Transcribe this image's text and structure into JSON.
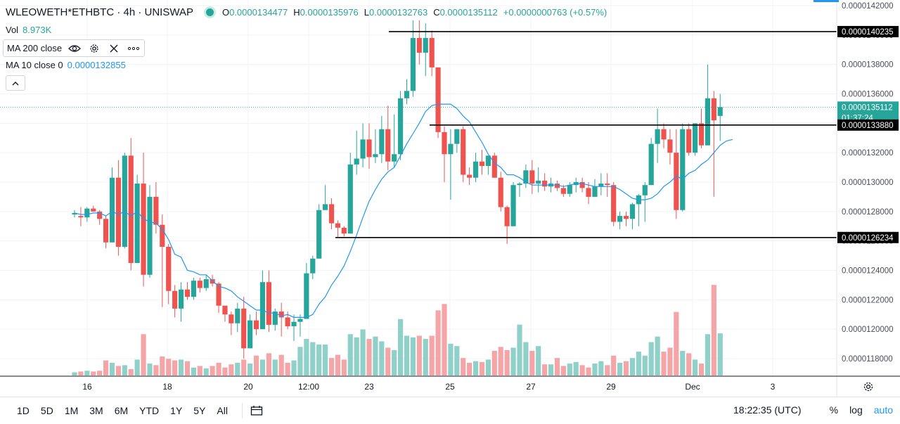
{
  "header": {
    "symbol": "WLEOWETH*ETHBTC · 4h · UNISWAP",
    "o_label": "O",
    "o": "0.0000134477",
    "h_label": "H",
    "h": "0.0000135976",
    "l_label": "L",
    "l": "0.0000132763",
    "c_label": "C",
    "c": "0.0000135112",
    "change": "+0.0000000763 (+0.57%)",
    "vol_label": "Vol",
    "vol": "8.973K",
    "ma200_label": "MA 200 close",
    "ma10_label": "MA 10 close 0",
    "ma10_value": "0.0000132855"
  },
  "toolbar": {
    "timeframes": [
      "1D",
      "5D",
      "1M",
      "3M",
      "6M",
      "YTD",
      "1Y",
      "5Y",
      "All"
    ],
    "clock": "18:22:35 (UTC)",
    "percent": "%",
    "log": "log",
    "auto": "auto"
  },
  "colors": {
    "up": "#26a69a",
    "down": "#ef5350",
    "up_vol": "#8fd1c9",
    "down_vol": "#f4a5a8",
    "ma": "#2196f3",
    "hline": "#000000"
  },
  "icons": [
    "eye-icon",
    "gear-icon",
    "close-icon",
    "more-icon",
    "chevron-up-icon",
    "calendar-icon",
    "settings-icon"
  ],
  "chart_data": {
    "type": "candlestick",
    "title": "WLEOWETH*ETHBTC · 4h · UNISWAP",
    "y_ticks": [
      "0.0000142000",
      "0.0000140000",
      "0.0000138000",
      "0.0000136000",
      "0.0000134000",
      "0.0000132000",
      "0.0000130000",
      "0.0000128000",
      "0.0000126000",
      "0.0000124000",
      "0.0000122000",
      "0.0000120000",
      "0.0000118000"
    ],
    "x_ticks": [
      "16",
      "18",
      "20",
      "12:00",
      "23",
      "25",
      "27",
      "29",
      "Dec",
      "3"
    ],
    "y_range": [
      1.16e-05,
      1.43e-05
    ],
    "price_labels": {
      "last": "0.0000135112",
      "countdown": "01:37:24",
      "line_a": "0.0000140235",
      "line_b": "0.0000133880",
      "line_c": "0.0000126234"
    },
    "horizontal_lines": [
      {
        "value": 1.40235e-05,
        "from_day": "23"
      },
      {
        "value": 1.3388e-05,
        "from_day": "25"
      },
      {
        "value": 1.26234e-05,
        "from_day": "22"
      }
    ],
    "ohlc": [
      [
        1.278e-05,
        1.281e-05,
        1.276e-05,
        1.279e-05,
        0.4
      ],
      [
        1.277e-05,
        1.283e-05,
        1.27e-05,
        1.276e-05,
        0.5
      ],
      [
        1.276e-05,
        1.283e-05,
        1.273e-05,
        1.282e-05,
        0.6
      ],
      [
        1.282e-05,
        1.284e-05,
        1.28e-05,
        1.28e-05,
        0.5
      ],
      [
        1.28e-05,
        1.281e-05,
        1.271e-05,
        1.275e-05,
        0.6
      ],
      [
        1.275e-05,
        1.277e-05,
        1.255e-05,
        1.259e-05,
        1.9
      ],
      [
        1.259e-05,
        1.31e-05,
        1.259e-05,
        1.303e-05,
        1.6
      ],
      [
        1.303e-05,
        1.315e-05,
        1.25e-05,
        1.256e-05,
        1.2
      ],
      [
        1.256e-05,
        1.32e-05,
        1.255e-05,
        1.318e-05,
        1.3
      ],
      [
        1.318e-05,
        1.33e-05,
        1.24e-05,
        1.245e-05,
        0.8
      ],
      [
        1.245e-05,
        1.305e-05,
        1.245e-05,
        1.299e-05,
        2.0
      ],
      [
        1.299e-05,
        1.32e-05,
        1.229e-05,
        1.237e-05,
        5.2
      ],
      [
        1.237e-05,
        1.298e-05,
        1.235e-05,
        1.29e-05,
        1.5
      ],
      [
        1.29e-05,
        1.3e-05,
        1.265e-05,
        1.271e-05,
        1.3
      ],
      [
        1.271e-05,
        1.278e-05,
        1.215e-05,
        1.256e-05,
        2.4
      ],
      [
        1.256e-05,
        1.258e-05,
        1.217e-05,
        1.226e-05,
        2.1
      ],
      [
        1.226e-05,
        1.23e-05,
        1.208e-05,
        1.214e-05,
        1.9
      ],
      [
        1.214e-05,
        1.232e-05,
        1.205e-05,
        1.227e-05,
        2.0
      ],
      [
        1.227e-05,
        1.232e-05,
        1.22e-05,
        1.222e-05,
        1.8
      ],
      [
        1.222e-05,
        1.235e-05,
        1.22e-05,
        1.233e-05,
        1.0
      ],
      [
        1.233e-05,
        1.235e-05,
        1.225e-05,
        1.228e-05,
        1.2
      ],
      [
        1.228e-05,
        1.237e-05,
        1.226e-05,
        1.234e-05,
        0.9
      ],
      [
        1.234e-05,
        1.237e-05,
        1.229e-05,
        1.231e-05,
        1.2
      ],
      [
        1.231e-05,
        1.232e-05,
        1.211e-05,
        1.216e-05,
        1.6
      ],
      [
        1.216e-05,
        1.216e-05,
        1.205e-05,
        1.21e-05,
        1.0
      ],
      [
        1.21e-05,
        1.212e-05,
        1.196e-05,
        1.204e-05,
        1.4
      ],
      [
        1.204e-05,
        1.218e-05,
        1.198e-05,
        1.214e-05,
        1.6
      ],
      [
        1.214e-05,
        1.222e-05,
        1.18e-05,
        1.187e-05,
        2.0
      ],
      [
        1.187e-05,
        1.21e-05,
        1.187e-05,
        1.206e-05,
        1.5
      ],
      [
        1.206e-05,
        1.212e-05,
        1.196e-05,
        1.2e-05,
        2.5
      ],
      [
        1.2e-05,
        1.24e-05,
        1.2e-05,
        1.232e-05,
        2.0
      ],
      [
        1.232e-05,
        1.24e-05,
        1.198e-05,
        1.203e-05,
        2.8
      ],
      [
        1.203e-05,
        1.214e-05,
        1.199e-05,
        1.212e-05,
        2.0
      ],
      [
        1.212e-05,
        1.218e-05,
        1.195e-05,
        1.208e-05,
        2.6
      ],
      [
        1.208e-05,
        1.212e-05,
        1.2e-05,
        1.202e-05,
        1.6
      ],
      [
        1.202e-05,
        1.21e-05,
        1.192e-05,
        1.205e-05,
        1.9
      ],
      [
        1.205e-05,
        1.21e-05,
        1.195e-05,
        1.207e-05,
        3.6
      ],
      [
        1.207e-05,
        1.245e-05,
        1.207e-05,
        1.238e-05,
        4.6
      ],
      [
        1.238e-05,
        1.25e-05,
        1.234e-05,
        1.248e-05,
        4.2
      ],
      [
        1.248e-05,
        1.285e-05,
        1.248e-05,
        1.281e-05,
        3.9
      ],
      [
        1.281e-05,
        1.298e-05,
        1.281e-05,
        1.285e-05,
        3.9
      ],
      [
        1.285e-05,
        1.289e-05,
        1.268e-05,
        1.272e-05,
        2.2
      ],
      [
        1.272e-05,
        1.274e-05,
        1.262e-05,
        1.269e-05,
        2.6
      ],
      [
        1.269e-05,
        1.27e-05,
        1.263e-05,
        1.265e-05,
        2.0
      ],
      [
        1.265e-05,
        1.32e-05,
        1.265e-05,
        1.312e-05,
        5.2
      ],
      [
        1.312e-05,
        1.335e-05,
        1.305e-05,
        1.316e-05,
        4.8
      ],
      [
        1.316e-05,
        1.34e-05,
        1.31e-05,
        1.329e-05,
        5.8
      ],
      [
        1.329e-05,
        1.34e-05,
        1.309e-05,
        1.317e-05,
        4.6
      ],
      [
        1.317e-05,
        1.336e-05,
        1.313e-05,
        1.319e-05,
        4.9
      ],
      [
        1.319e-05,
        1.345e-05,
        1.313e-05,
        1.336e-05,
        4.3
      ],
      [
        1.336e-05,
        1.352e-05,
        1.308e-05,
        1.314e-05,
        3.5
      ],
      [
        1.314e-05,
        1.346e-05,
        1.31e-05,
        1.319e-05,
        3.2
      ],
      [
        1.319e-05,
        1.362e-05,
        1.315e-05,
        1.357e-05,
        7.1
      ],
      [
        1.357e-05,
        1.37e-05,
        1.353e-05,
        1.362e-05,
        5.0
      ],
      [
        1.362e-05,
        1.41e-05,
        1.358e-05,
        1.398e-05,
        4.8
      ],
      [
        1.398e-05,
        1.41e-05,
        1.38e-05,
        1.388e-05,
        5.0
      ],
      [
        1.388e-05,
        1.408e-05,
        1.372e-05,
        1.398e-05,
        4.6
      ],
      [
        1.398e-05,
        1.403e-05,
        1.372e-05,
        1.378e-05,
        5.0
      ],
      [
        1.378e-05,
        1.378e-05,
        1.33e-05,
        1.334e-05,
        8.2
      ],
      [
        1.334e-05,
        1.338e-05,
        1.3e-05,
        1.319e-05,
        9.0
      ],
      [
        1.319e-05,
        1.336e-05,
        1.288e-05,
        1.326e-05,
        4.0
      ],
      [
        1.326e-05,
        1.336e-05,
        1.32e-05,
        1.336e-05,
        3.7
      ],
      [
        1.336e-05,
        1.338e-05,
        1.3e-05,
        1.305e-05,
        2.2
      ],
      [
        1.305e-05,
        1.31e-05,
        1.298e-05,
        1.303e-05,
        1.6
      ],
      [
        1.303e-05,
        1.32e-05,
        1.3e-05,
        1.314e-05,
        1.8
      ],
      [
        1.314e-05,
        1.322e-05,
        1.305e-05,
        1.311e-05,
        1.7
      ],
      [
        1.311e-05,
        1.318e-05,
        1.305e-05,
        1.318e-05,
        2.0
      ],
      [
        1.318e-05,
        1.32e-05,
        1.303e-05,
        1.303e-05,
        3.1
      ],
      [
        1.303e-05,
        1.307e-05,
        1.28e-05,
        1.283e-05,
        3.6
      ],
      [
        1.283e-05,
        1.284e-05,
        1.258e-05,
        1.27e-05,
        3.2
      ],
      [
        1.27e-05,
        1.3e-05,
        1.27e-05,
        1.298e-05,
        3.5
      ],
      [
        1.298e-05,
        1.3e-05,
        1.29e-05,
        1.299e-05,
        6.4
      ],
      [
        1.299e-05,
        1.312e-05,
        1.296e-05,
        1.308e-05,
        4.2
      ],
      [
        1.308e-05,
        1.315e-05,
        1.292e-05,
        1.299e-05,
        3.1
      ],
      [
        1.299e-05,
        1.31e-05,
        1.293e-05,
        1.301e-05,
        3.7
      ],
      [
        1.301e-05,
        1.306e-05,
        1.294e-05,
        1.297e-05,
        1.4
      ],
      [
        1.297e-05,
        1.303e-05,
        1.293e-05,
        1.299e-05,
        1.4
      ],
      [
        1.299e-05,
        1.301e-05,
        1.294e-05,
        1.296e-05,
        2.2
      ],
      [
        1.296e-05,
        1.298e-05,
        1.29e-05,
        1.292e-05,
        1.2
      ],
      [
        1.292e-05,
        1.3e-05,
        1.29e-05,
        1.298e-05,
        1.5
      ],
      [
        1.298e-05,
        1.303e-05,
        1.293e-05,
        1.3e-05,
        1.7
      ],
      [
        1.3e-05,
        1.303e-05,
        1.293e-05,
        1.296e-05,
        1.3
      ],
      [
        1.296e-05,
        1.3e-05,
        1.285e-05,
        1.29e-05,
        1.0
      ],
      [
        1.29e-05,
        1.302e-05,
        1.29e-05,
        1.297e-05,
        1.5
      ],
      [
        1.297e-05,
        1.306e-05,
        1.291e-05,
        1.299e-05,
        1.8
      ],
      [
        1.299e-05,
        1.306e-05,
        1.29e-05,
        1.298e-05,
        1.3
      ],
      [
        1.298e-05,
        1.3e-05,
        1.27e-05,
        1.273e-05,
        2.5
      ],
      [
        1.273e-05,
        1.28e-05,
        1.268e-05,
        1.277e-05,
        1.6
      ],
      [
        1.277e-05,
        1.28e-05,
        1.27e-05,
        1.275e-05,
        1.8
      ],
      [
        1.275e-05,
        1.286e-05,
        1.268e-05,
        1.285e-05,
        2.2
      ],
      [
        1.285e-05,
        1.292e-05,
        1.27e-05,
        1.291e-05,
        3.0
      ],
      [
        1.291e-05,
        1.3e-05,
        1.273e-05,
        1.298e-05,
        2.5
      ],
      [
        1.298e-05,
        1.33e-05,
        1.298e-05,
        1.326e-05,
        4.2
      ],
      [
        1.326e-05,
        1.35e-05,
        1.313e-05,
        1.336e-05,
        4.9
      ],
      [
        1.336e-05,
        1.34e-05,
        1.323e-05,
        1.329e-05,
        3.0
      ],
      [
        1.329e-05,
        1.336e-05,
        1.312e-05,
        1.32e-05,
        3.5
      ],
      [
        1.32e-05,
        1.336e-05,
        1.275e-05,
        1.281e-05,
        8.0
      ],
      [
        1.281e-05,
        1.34e-05,
        1.28e-05,
        1.336e-05,
        3.1
      ],
      [
        1.336e-05,
        1.34e-05,
        1.318e-05,
        1.32e-05,
        2.8
      ],
      [
        1.32e-05,
        1.34e-05,
        1.318e-05,
        1.34e-05,
        2.0
      ],
      [
        1.34e-05,
        1.35e-05,
        1.323e-05,
        1.325e-05,
        1.5
      ],
      [
        1.325e-05,
        1.38e-05,
        1.325e-05,
        1.357e-05,
        5.2
      ],
      [
        1.357e-05,
        1.362e-05,
        1.29e-05,
        1.342e-05,
        11.4
      ],
      [
        1.345e-05,
        1.36e-05,
        1.328e-05,
        1.351e-05,
        5.3
      ]
    ],
    "ma10": [
      1.279e-05,
      1.278e-05,
      1.278e-05,
      1.279e-05,
      1.279e-05,
      1.277e-05,
      1.28e-05,
      1.278e-05,
      1.28e-05,
      1.277e-05,
      1.28e-05,
      1.275e-05,
      1.273e-05,
      1.272e-05,
      1.268e-05,
      1.261e-05,
      1.251e-05,
      1.249e-05,
      1.24e-05,
      1.239e-05,
      1.237e-05,
      1.237e-05,
      1.233e-05,
      1.229e-05,
      1.228e-05,
      1.226e-05,
      1.222e-05,
      1.219e-05,
      1.216e-05,
      1.213e-05,
      1.213e-05,
      1.211e-05,
      1.211e-05,
      1.209e-05,
      1.21e-05,
      1.208e-05,
      1.208e-05,
      1.208e-05,
      1.21e-05,
      1.217e-05,
      1.222e-05,
      1.23e-05,
      1.236e-05,
      1.243e-05,
      1.253e-05,
      1.264e-05,
      1.276e-05,
      1.287e-05,
      1.295e-05,
      1.302e-05,
      1.307e-05,
      1.31e-05,
      1.318e-05,
      1.326e-05,
      1.333e-05,
      1.34e-05,
      1.348e-05,
      1.352e-05,
      1.353e-05,
      1.353e-05,
      1.353e-05,
      1.35e-05,
      1.345e-05,
      1.341e-05,
      1.334e-05,
      1.327e-05,
      1.319e-05,
      1.313e-05,
      1.31e-05,
      1.305e-05,
      1.305e-05,
      1.303e-05,
      1.3e-05,
      1.298e-05,
      1.298e-05,
      1.298e-05,
      1.298e-05,
      1.298e-05,
      1.297e-05,
      1.298e-05,
      1.299e-05,
      1.299e-05,
      1.298e-05,
      1.297e-05,
      1.297e-05,
      1.297e-05,
      1.297e-05,
      1.295e-05,
      1.292e-05,
      1.289e-05,
      1.288e-05,
      1.288e-05,
      1.289e-05,
      1.292e-05,
      1.297e-05,
      1.3e-05,
      1.304e-05,
      1.302e-05,
      1.306e-05,
      1.308e-05,
      1.312e-05,
      1.315e-05,
      1.32e-05,
      1.325e-05,
      1.328e-05,
      1.329e-05
    ]
  }
}
